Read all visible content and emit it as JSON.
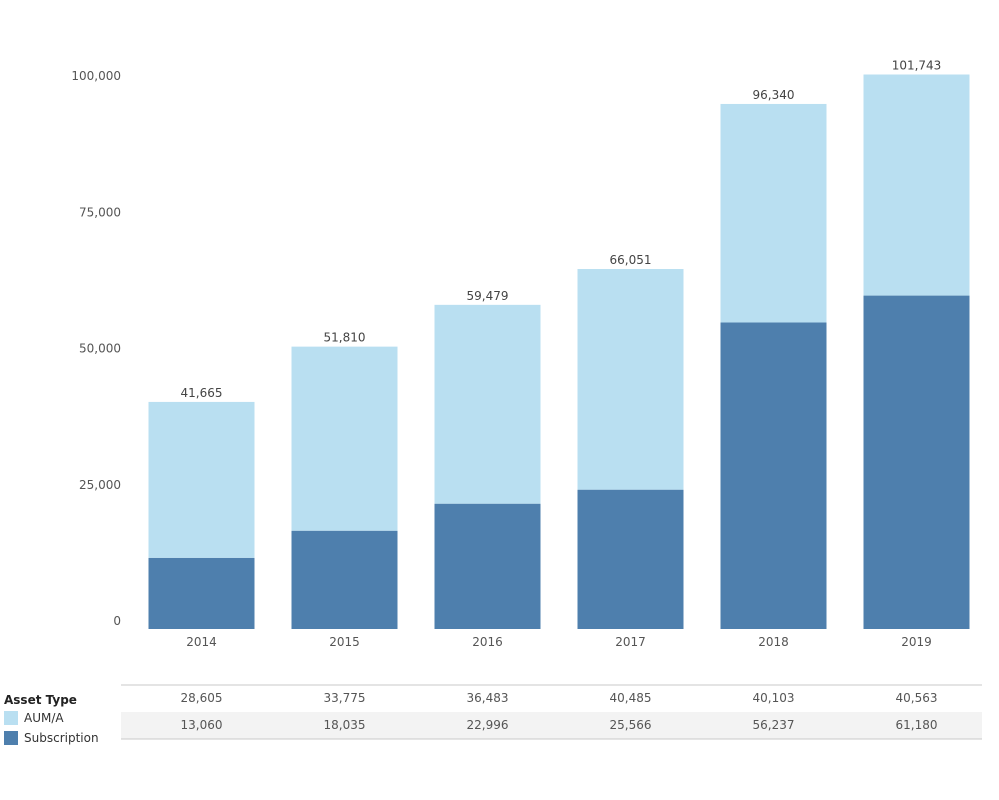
{
  "colors": {
    "aum": "#b9dff1",
    "subscription": "#4e7fad",
    "table_band": "#f3f3f3",
    "table_rule": "#c8c8c8"
  },
  "legend": {
    "title": "Asset Type",
    "items": [
      {
        "label": "AUM/A",
        "color": "#b9dff1"
      },
      {
        "label": "Subscription",
        "color": "#4e7fad"
      }
    ]
  },
  "chart_data": {
    "type": "bar",
    "stacked": true,
    "categories": [
      "2014",
      "2015",
      "2016",
      "2017",
      "2018",
      "2019"
    ],
    "series": [
      {
        "name": "Subscription",
        "values": [
          13060,
          18035,
          22996,
          25566,
          56237,
          61180
        ]
      },
      {
        "name": "AUM/A",
        "values": [
          28605,
          33775,
          36483,
          40485,
          40103,
          40563
        ]
      }
    ],
    "totals": [
      "41,665",
      "51,810",
      "59,479",
      "66,051",
      "96,340",
      "101,743"
    ],
    "y_ticks": [
      "0",
      "25,000",
      "50,000",
      "75,000",
      "100,000"
    ],
    "ylim": [
      0,
      100000
    ],
    "grid": false,
    "legend_position": "bottom-left",
    "table_rows": [
      {
        "series": "AUM/A",
        "cells": [
          "28,605",
          "33,775",
          "36,483",
          "40,485",
          "40,103",
          "40,563"
        ]
      },
      {
        "series": "Subscription",
        "cells": [
          "13,060",
          "18,035",
          "22,996",
          "25,566",
          "56,237",
          "61,180"
        ]
      }
    ]
  }
}
